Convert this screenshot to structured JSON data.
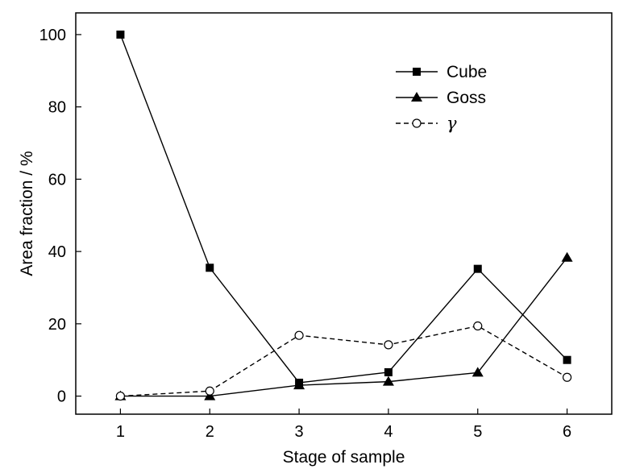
{
  "chart_data": {
    "type": "line",
    "title": "",
    "xlabel": "Stage of sample",
    "ylabel": "Area fraction / %",
    "x": [
      1,
      2,
      3,
      4,
      5,
      6
    ],
    "x_ticks": [
      "1",
      "2",
      "3",
      "4",
      "5",
      "6"
    ],
    "xlim": [
      0.5,
      6.5
    ],
    "y_ticks": [
      "0",
      "20",
      "40",
      "60",
      "80",
      "100"
    ],
    "ylim": [
      -5,
      106
    ],
    "grid": false,
    "legend_position": "top-right",
    "series": [
      {
        "name": "Cube",
        "marker": "filled-square",
        "line": "solid",
        "color": "#000000",
        "values": [
          100,
          35.5,
          3.7,
          6.6,
          35.2,
          10
        ]
      },
      {
        "name": "Goss",
        "marker": "filled-triangle",
        "line": "solid",
        "color": "#000000",
        "values": [
          0,
          0,
          3,
          4,
          6.5,
          38.3
        ]
      },
      {
        "name": "γ",
        "marker": "open-circle",
        "line": "dashed",
        "color": "#000000",
        "values": [
          0,
          1.4,
          16.8,
          14.2,
          19.4,
          5.2
        ]
      }
    ]
  }
}
